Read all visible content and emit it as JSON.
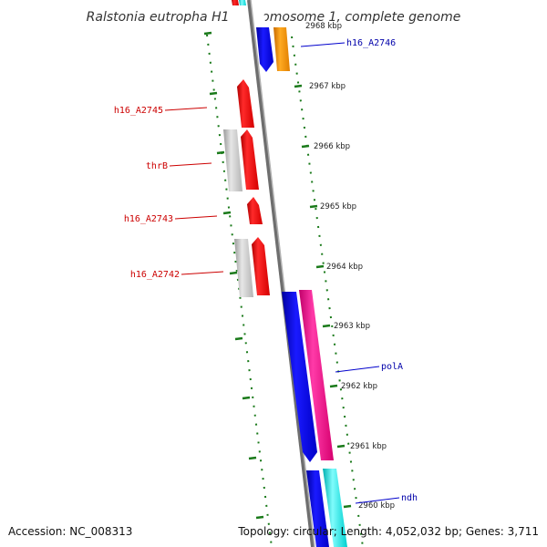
{
  "title": "Ralstonia eutropha H16 chromosome 1, complete genome",
  "colors": {
    "backbone": "#8a8a8a",
    "ticks": "#1a7a1a",
    "red": "#ff0000",
    "grey": "#c8c8c8",
    "orange": "#ff9900",
    "blue": "#0000ee",
    "pink": "#ff1493",
    "cyan": "#00eeee",
    "label_red": "#cc0000",
    "label_blue": "#0000aa"
  },
  "positions": [
    {
      "label": "2968 kbp"
    },
    {
      "label": "2967 kbp"
    },
    {
      "label": "2966 kbp"
    },
    {
      "label": "2965 kbp"
    },
    {
      "label": "2964 kbp"
    },
    {
      "label": "2963 kbp"
    },
    {
      "label": "2962 kbp"
    },
    {
      "label": "2961 kbp"
    },
    {
      "label": "2960 kbp"
    }
  ],
  "genes": [
    {
      "name": "h16_A2746",
      "color": "blue"
    },
    {
      "name": "h16_A2745",
      "color": "red"
    },
    {
      "name": "thrB",
      "color": "red"
    },
    {
      "name": "h16_A2743",
      "color": "red"
    },
    {
      "name": "h16_A2742",
      "color": "red"
    },
    {
      "name": "polA",
      "color": "blue"
    },
    {
      "name": "ndh",
      "color": "blue"
    }
  ],
  "footer": {
    "accession": "Accession: NC_008313",
    "summary": "Topology: circular; Length: 4,052,032 bp; Genes: 3,711"
  }
}
